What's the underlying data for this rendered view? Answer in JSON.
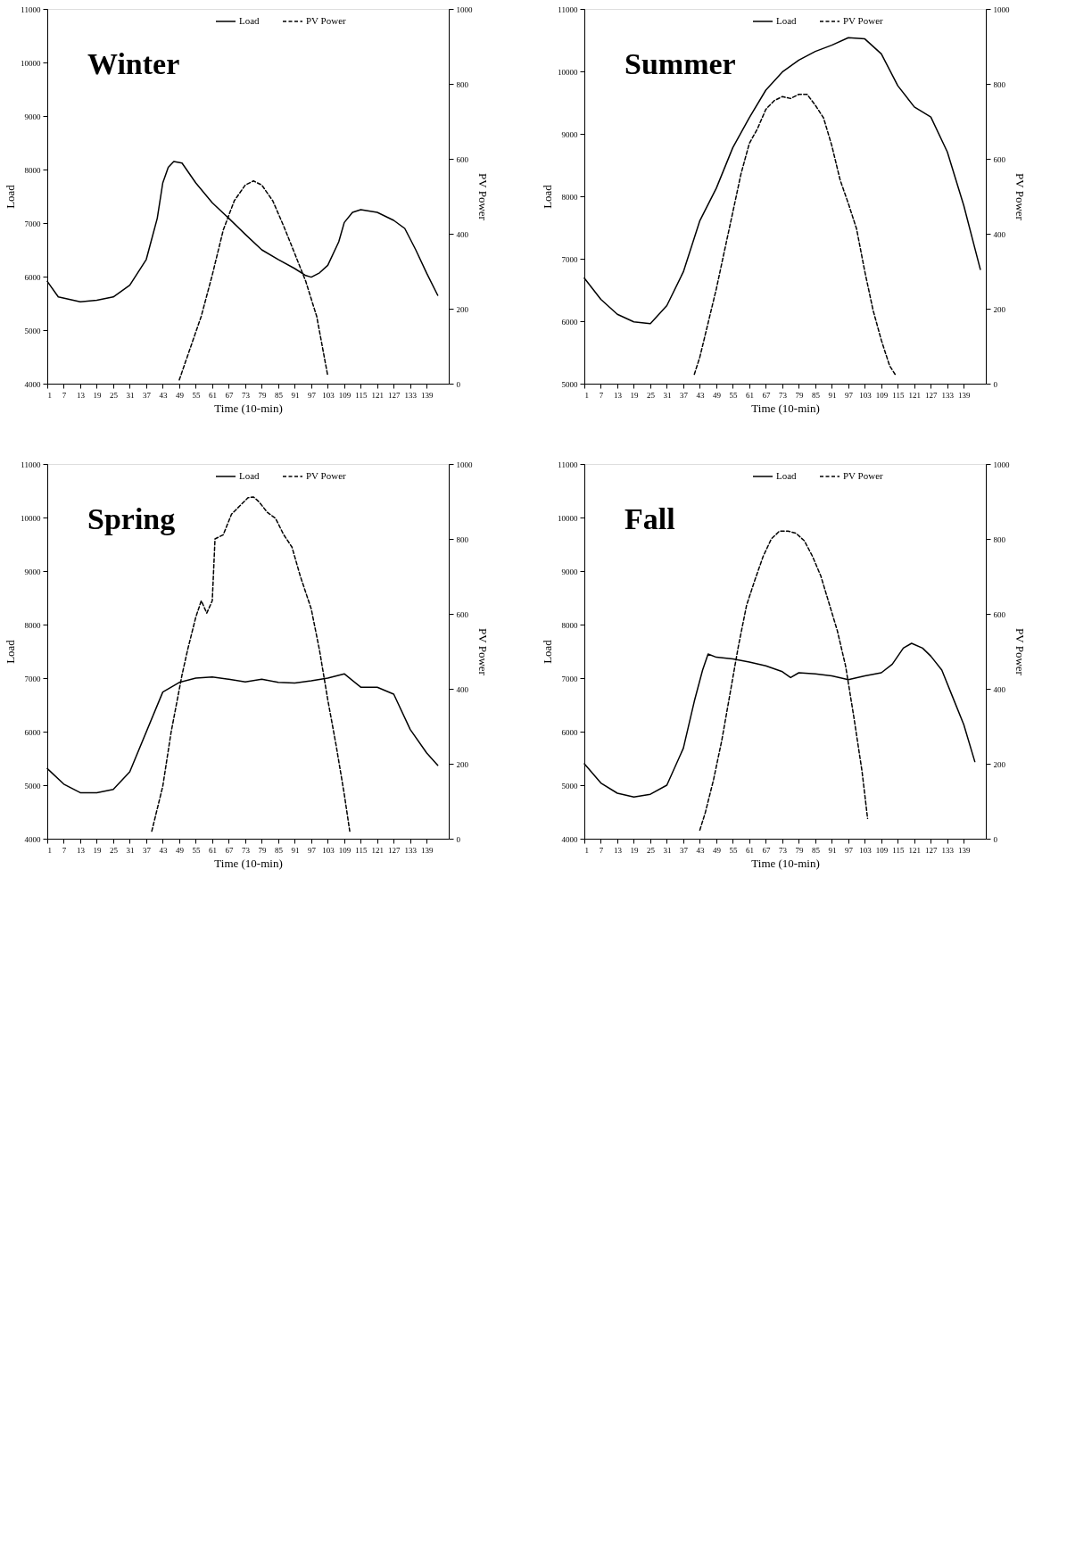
{
  "chart_data": [
    {
      "type": "line",
      "xlabel": "Time (10-min)",
      "ylabel": "Load",
      "y2label": "PV Power",
      "annotations": [
        "Winter"
      ],
      "xlim": [
        1,
        147
      ],
      "xticks": [
        1,
        7,
        13,
        19,
        25,
        31,
        37,
        43,
        49,
        55,
        61,
        67,
        73,
        79,
        85,
        91,
        97,
        103,
        109,
        115,
        121,
        127,
        133,
        139
      ],
      "ylim": [
        4000,
        11000
      ],
      "yticks": [
        4000,
        5000,
        6000,
        7000,
        8000,
        9000,
        10000,
        11000
      ],
      "y2lim": [
        0,
        1000
      ],
      "y2ticks": [
        0,
        200,
        400,
        600,
        800,
        1000
      ],
      "grid": false,
      "legend": "top",
      "series": [
        {
          "name": "Load",
          "color": "#000000",
          "line_style": "solid",
          "x": [
            1,
            5,
            13,
            19,
            25,
            31,
            37,
            41,
            43,
            45,
            47,
            50,
            55,
            61,
            67,
            73,
            79,
            85,
            91,
            95,
            97,
            100,
            103,
            107,
            109,
            112,
            115,
            121,
            127,
            131,
            135,
            139,
            143
          ],
          "values": [
            5910,
            5620,
            5530,
            5560,
            5620,
            5840,
            6320,
            7090,
            7750,
            8040,
            8150,
            8120,
            7750,
            7380,
            7090,
            6790,
            6500,
            6320,
            6150,
            6020,
            5990,
            6070,
            6210,
            6650,
            7010,
            7200,
            7250,
            7200,
            7050,
            6900,
            6500,
            6060,
            5650
          ]
        },
        {
          "name": "PV Power",
          "color": "#000000",
          "line_style": "dashed",
          "axis": "y2",
          "x": [
            49,
            53,
            57,
            61,
            65,
            69,
            73,
            76,
            79,
            83,
            87,
            91,
            95,
            99,
            103
          ],
          "values": [
            10,
            95,
            180,
            290,
            410,
            488,
            530,
            541,
            530,
            488,
            420,
            347,
            273,
            179,
            21
          ]
        }
      ]
    },
    {
      "type": "line",
      "xlabel": "Time (10-min)",
      "ylabel": "Load",
      "y2label": "PV Power",
      "annotations": [
        "Summer"
      ],
      "xlim": [
        1,
        147
      ],
      "xticks": [
        1,
        7,
        13,
        19,
        25,
        31,
        37,
        43,
        49,
        55,
        61,
        67,
        73,
        79,
        85,
        91,
        97,
        103,
        109,
        115,
        121,
        127,
        133,
        139
      ],
      "ylim": [
        5000,
        11000
      ],
      "yticks": [
        5000,
        6000,
        7000,
        8000,
        9000,
        10000,
        11000
      ],
      "y2lim": [
        0,
        1000
      ],
      "y2ticks": [
        0,
        200,
        400,
        600,
        800,
        1000
      ],
      "grid": false,
      "legend": "top",
      "series": [
        {
          "name": "Load",
          "color": "#000000",
          "line_style": "solid",
          "x": [
            1,
            7,
            13,
            19,
            25,
            31,
            37,
            43,
            49,
            55,
            61,
            67,
            73,
            79,
            85,
            91,
            97,
            103,
            109,
            115,
            121,
            127,
            133,
            139,
            145
          ],
          "values": [
            6690,
            6350,
            6110,
            5990,
            5960,
            6250,
            6790,
            7610,
            8130,
            8780,
            9260,
            9700,
            9990,
            10180,
            10320,
            10420,
            10540,
            10520,
            10280,
            9770,
            9430,
            9270,
            8710,
            7850,
            6830
          ]
        },
        {
          "name": "PV Power",
          "color": "#000000",
          "line_style": "dashed",
          "axis": "y2",
          "x": [
            41,
            43,
            46,
            49,
            52,
            55,
            58,
            61,
            64,
            67,
            70,
            73,
            76,
            79,
            82,
            85,
            88,
            91,
            94,
            97,
            100,
            103,
            106,
            109,
            112,
            114
          ],
          "values": [
            25,
            71,
            162,
            253,
            356,
            458,
            561,
            641,
            681,
            732,
            755,
            766,
            761,
            772,
            772,
            743,
            709,
            635,
            544,
            481,
            413,
            299,
            196,
            116,
            48,
            25
          ]
        }
      ]
    },
    {
      "type": "line",
      "xlabel": "Time (10-min)",
      "ylabel": "Load",
      "y2label": "PV Power",
      "annotations": [
        "Spring"
      ],
      "xlim": [
        1,
        147
      ],
      "xticks": [
        1,
        7,
        13,
        19,
        25,
        31,
        37,
        43,
        49,
        55,
        61,
        67,
        73,
        79,
        85,
        91,
        97,
        103,
        109,
        115,
        121,
        127,
        133,
        139
      ],
      "ylim": [
        4000,
        11000
      ],
      "yticks": [
        4000,
        5000,
        6000,
        7000,
        8000,
        9000,
        10000,
        11000
      ],
      "y2lim": [
        0,
        1000
      ],
      "y2ticks": [
        0,
        200,
        400,
        600,
        800,
        1000
      ],
      "grid": false,
      "legend": "top",
      "series": [
        {
          "name": "Load",
          "color": "#000000",
          "line_style": "solid",
          "x": [
            1,
            7,
            13,
            19,
            25,
            31,
            43,
            49,
            55,
            61,
            67,
            73,
            79,
            85,
            91,
            97,
            103,
            109,
            115,
            121,
            127,
            133,
            139,
            143
          ],
          "values": [
            5310,
            5020,
            4860,
            4860,
            4920,
            5250,
            6740,
            6920,
            7000,
            7020,
            6980,
            6930,
            6980,
            6920,
            6910,
            6950,
            7000,
            7080,
            6830,
            6830,
            6700,
            6040,
            5600,
            5370
          ]
        },
        {
          "name": "PV Power",
          "color": "#000000",
          "line_style": "dashed",
          "axis": "y2",
          "x": [
            39,
            43,
            46,
            50,
            52,
            55,
            57,
            59,
            61,
            62,
            65,
            68,
            71,
            74,
            76,
            78,
            81,
            84,
            87,
            90,
            93,
            97,
            100,
            103,
            106,
            109,
            111
          ],
          "values": [
            20,
            140,
            283,
            437,
            503,
            591,
            635,
            602,
            635,
            800,
            811,
            866,
            888,
            910,
            912,
            899,
            871,
            855,
            811,
            778,
            701,
            613,
            503,
            371,
            251,
            119,
            20
          ]
        }
      ]
    },
    {
      "type": "line",
      "xlabel": "Time (10-min)",
      "ylabel": "Load",
      "y2label": "PV Power",
      "annotations": [
        "Fall"
      ],
      "xlim": [
        1,
        147
      ],
      "xticks": [
        1,
        7,
        13,
        19,
        25,
        31,
        37,
        43,
        49,
        55,
        61,
        67,
        73,
        79,
        85,
        91,
        97,
        103,
        109,
        115,
        121,
        127,
        133,
        139
      ],
      "ylim": [
        4000,
        11000
      ],
      "yticks": [
        4000,
        5000,
        6000,
        7000,
        8000,
        9000,
        10000,
        11000
      ],
      "y2lim": [
        0,
        1000
      ],
      "y2ticks": [
        0,
        200,
        400,
        600,
        800,
        1000
      ],
      "grid": false,
      "legend": "top",
      "series": [
        {
          "name": "Load",
          "color": "#000000",
          "line_style": "solid",
          "x": [
            1,
            7,
            13,
            19,
            25,
            31,
            37,
            41,
            44,
            46,
            49,
            55,
            61,
            67,
            73,
            76,
            79,
            85,
            91,
            97,
            103,
            109,
            113,
            117,
            120,
            124,
            127,
            131,
            135,
            139,
            143
          ],
          "values": [
            5400,
            5040,
            4850,
            4780,
            4830,
            5000,
            5690,
            6570,
            7150,
            7450,
            7390,
            7360,
            7300,
            7230,
            7120,
            7010,
            7100,
            7080,
            7040,
            6970,
            7040,
            7100,
            7260,
            7560,
            7650,
            7560,
            7410,
            7150,
            6640,
            6130,
            5440
          ]
        },
        {
          "name": "PV Power",
          "color": "#000000",
          "line_style": "dashed",
          "axis": "y2",
          "x": [
            43,
            45,
            48,
            51,
            54,
            57,
            60,
            63,
            66,
            69,
            72,
            75,
            78,
            81,
            84,
            87,
            90,
            93,
            96,
            99,
            102,
            104
          ],
          "values": [
            23,
            70,
            158,
            263,
            388,
            513,
            623,
            690,
            753,
            800,
            821,
            821,
            815,
            795,
            753,
            701,
            628,
            555,
            461,
            325,
            179,
            54
          ]
        }
      ]
    }
  ]
}
